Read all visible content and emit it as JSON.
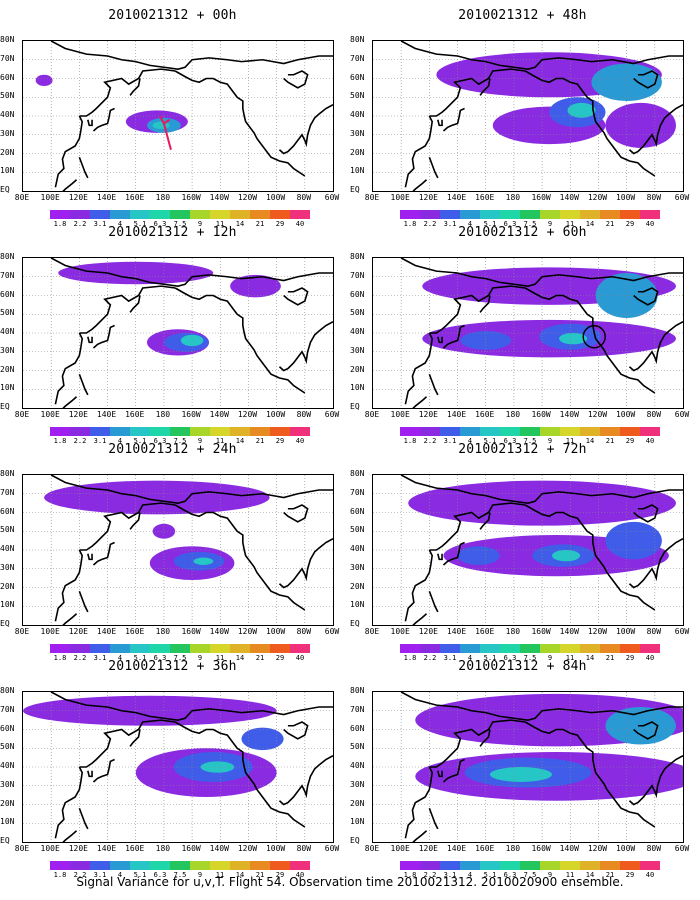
{
  "panels": [
    {
      "title": "2010021312 + 00h",
      "blobs": [
        {
          "lon": 175,
          "lat": 37,
          "rx": 22,
          "ry": 6,
          "c": "#8a2be2"
        },
        {
          "lon": 180,
          "lat": 35,
          "rx": 12,
          "ry": 4,
          "c": "#2a9ad5"
        },
        {
          "lon": 178,
          "lat": 35,
          "rx": 6,
          "ry": 2,
          "c": "#27c6c6"
        },
        {
          "lon": 95,
          "lat": 59,
          "rx": 6,
          "ry": 3,
          "c": "#8a2be2"
        }
      ],
      "annotation": "arrow"
    },
    {
      "title": "2010021312 + 48h",
      "blobs": [
        {
          "lon": 205,
          "lat": 62,
          "rx": 80,
          "ry": 12,
          "c": "#8a2be2"
        },
        {
          "lon": 205,
          "lat": 35,
          "rx": 40,
          "ry": 10,
          "c": "#8a2be2"
        },
        {
          "lon": 225,
          "lat": 42,
          "rx": 20,
          "ry": 8,
          "c": "#3f5de8"
        },
        {
          "lon": 228,
          "lat": 43,
          "rx": 10,
          "ry": 4,
          "c": "#27c6c6"
        },
        {
          "lon": 260,
          "lat": 58,
          "rx": 25,
          "ry": 10,
          "c": "#2a9ad5"
        },
        {
          "lon": 270,
          "lat": 35,
          "rx": 25,
          "ry": 12,
          "c": "#8a2be2"
        }
      ]
    },
    {
      "title": "2010021312 + 12h",
      "blobs": [
        {
          "lon": 190,
          "lat": 35,
          "rx": 22,
          "ry": 7,
          "c": "#8a2be2"
        },
        {
          "lon": 196,
          "lat": 35,
          "rx": 16,
          "ry": 5,
          "c": "#3f5de8"
        },
        {
          "lon": 200,
          "lat": 36,
          "rx": 8,
          "ry": 3,
          "c": "#27c6c6"
        },
        {
          "lon": 160,
          "lat": 72,
          "rx": 55,
          "ry": 6,
          "c": "#8a2be2"
        },
        {
          "lon": 245,
          "lat": 65,
          "rx": 18,
          "ry": 6,
          "c": "#8a2be2"
        }
      ]
    },
    {
      "title": "2010021312 + 60h",
      "blobs": [
        {
          "lon": 205,
          "lat": 65,
          "rx": 90,
          "ry": 10,
          "c": "#8a2be2"
        },
        {
          "lon": 205,
          "lat": 37,
          "rx": 90,
          "ry": 10,
          "c": "#8a2be2"
        },
        {
          "lon": 160,
          "lat": 36,
          "rx": 18,
          "ry": 5,
          "c": "#3f5de8"
        },
        {
          "lon": 220,
          "lat": 38,
          "rx": 22,
          "ry": 7,
          "c": "#3f5de8"
        },
        {
          "lon": 222,
          "lat": 37,
          "rx": 10,
          "ry": 3,
          "c": "#27c6c6"
        },
        {
          "lon": 260,
          "lat": 60,
          "rx": 22,
          "ry": 12,
          "c": "#2a9ad5"
        }
      ],
      "annotation": "circle"
    },
    {
      "title": "2010021312 + 24h",
      "blobs": [
        {
          "lon": 200,
          "lat": 33,
          "rx": 30,
          "ry": 9,
          "c": "#8a2be2"
        },
        {
          "lon": 205,
          "lat": 34,
          "rx": 18,
          "ry": 5,
          "c": "#3f5de8"
        },
        {
          "lon": 208,
          "lat": 34,
          "rx": 7,
          "ry": 2,
          "c": "#27c6c6"
        },
        {
          "lon": 175,
          "lat": 68,
          "rx": 80,
          "ry": 9,
          "c": "#8a2be2"
        },
        {
          "lon": 180,
          "lat": 50,
          "rx": 8,
          "ry": 4,
          "c": "#8a2be2"
        }
      ]
    },
    {
      "title": "2010021312 + 72h",
      "blobs": [
        {
          "lon": 200,
          "lat": 65,
          "rx": 95,
          "ry": 12,
          "c": "#8a2be2"
        },
        {
          "lon": 210,
          "lat": 37,
          "rx": 80,
          "ry": 11,
          "c": "#8a2be2"
        },
        {
          "lon": 155,
          "lat": 37,
          "rx": 15,
          "ry": 5,
          "c": "#3f5de8"
        },
        {
          "lon": 215,
          "lat": 37,
          "rx": 22,
          "ry": 6,
          "c": "#3f5de8"
        },
        {
          "lon": 217,
          "lat": 37,
          "rx": 10,
          "ry": 3,
          "c": "#27c6c6"
        },
        {
          "lon": 265,
          "lat": 45,
          "rx": 20,
          "ry": 10,
          "c": "#3f5de8"
        }
      ]
    },
    {
      "title": "2010021312 + 36h",
      "blobs": [
        {
          "lon": 210,
          "lat": 37,
          "rx": 50,
          "ry": 13,
          "c": "#8a2be2"
        },
        {
          "lon": 215,
          "lat": 40,
          "rx": 28,
          "ry": 8,
          "c": "#3f5de8"
        },
        {
          "lon": 218,
          "lat": 40,
          "rx": 12,
          "ry": 3,
          "c": "#27c6c6"
        },
        {
          "lon": 170,
          "lat": 70,
          "rx": 90,
          "ry": 8,
          "c": "#8a2be2"
        },
        {
          "lon": 250,
          "lat": 55,
          "rx": 15,
          "ry": 6,
          "c": "#3f5de8"
        }
      ]
    },
    {
      "title": "2010021312 + 84h",
      "blobs": [
        {
          "lon": 210,
          "lat": 65,
          "rx": 100,
          "ry": 14,
          "c": "#8a2be2"
        },
        {
          "lon": 210,
          "lat": 35,
          "rx": 100,
          "ry": 13,
          "c": "#8a2be2"
        },
        {
          "lon": 190,
          "lat": 37,
          "rx": 45,
          "ry": 8,
          "c": "#3f5de8"
        },
        {
          "lon": 185,
          "lat": 36,
          "rx": 22,
          "ry": 4,
          "c": "#27c6c6"
        },
        {
          "lon": 270,
          "lat": 62,
          "rx": 25,
          "ry": 10,
          "c": "#2a9ad5"
        }
      ]
    }
  ],
  "lat_labels": [
    "80N",
    "70N",
    "60N",
    "50N",
    "40N",
    "30N",
    "20N",
    "10N",
    "EQ"
  ],
  "lon_labels": [
    "80E",
    "100E",
    "120E",
    "140E",
    "160E",
    "180",
    "160W",
    "140W",
    "120W",
    "100W",
    "80W",
    "60W"
  ],
  "colorbar": {
    "colors": [
      "#a020f0",
      "#8a2be2",
      "#3f5de8",
      "#2a9ad5",
      "#27c6c6",
      "#1fd6a8",
      "#22c55e",
      "#a8d52a",
      "#d6d62a",
      "#e0b228",
      "#e88a22",
      "#ef5b1f",
      "#f0307a"
    ],
    "labels": [
      "1.8",
      "2.2",
      "3.1",
      "4",
      "5.1",
      "6.3",
      "7.5",
      "9",
      "11",
      "14",
      "21",
      "29",
      "40"
    ]
  },
  "caption": "Signal Variance for u,v,T. Flight 54. Observation time 2010021312. 2010020900 ensemble."
}
